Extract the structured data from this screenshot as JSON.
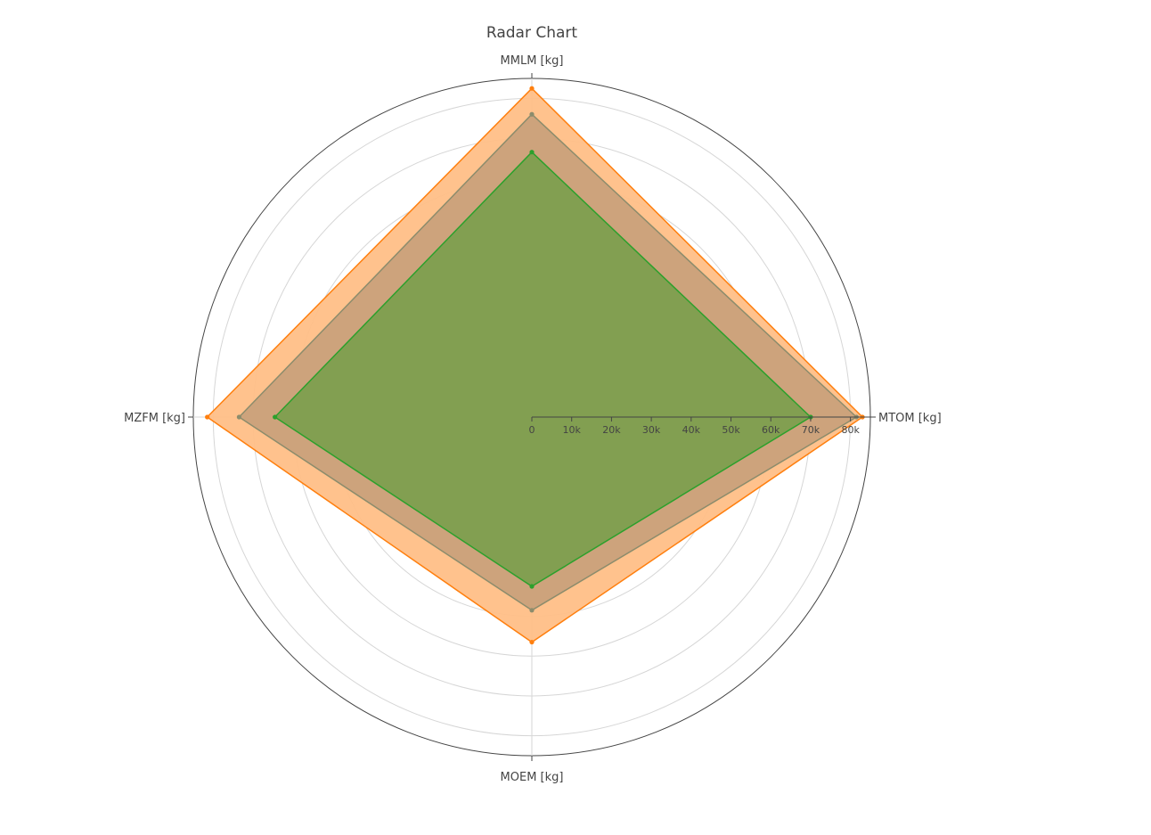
{
  "chart_data": {
    "type": "radar",
    "title": "Radar Chart",
    "axes": [
      "MTOM [kg]",
      "MMLM [kg]",
      "MZFM [kg]",
      "MOEM [kg]"
    ],
    "radial_range": [
      0,
      85000
    ],
    "radial_ticks": [
      0,
      10000,
      20000,
      30000,
      40000,
      50000,
      60000,
      70000,
      80000
    ],
    "radial_tick_labels": [
      "0",
      "10k",
      "20k",
      "30k",
      "40k",
      "50k",
      "60k",
      "70k",
      "80k"
    ],
    "grid": true,
    "legend": "none",
    "series": [
      {
        "values": [
          83000,
          82500,
          81500,
          56500
        ],
        "color": "#ff7f0e",
        "fill": "#ffbf87"
      },
      {
        "values": [
          81500,
          76000,
          73500,
          48500
        ],
        "color": "#8c8c6c",
        "fill": "#c8a07a"
      },
      {
        "values": [
          70000,
          66500,
          64500,
          42500
        ],
        "color": "#2ca02c",
        "fill": "#7a9e4c"
      }
    ]
  }
}
